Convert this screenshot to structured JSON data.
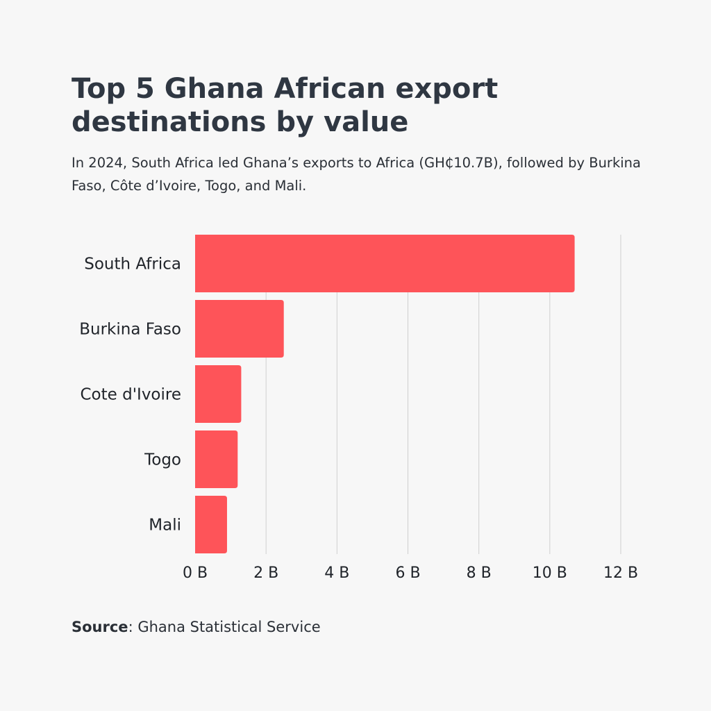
{
  "title": "Top 5 Ghana African export destinations by value",
  "subtitle": "In 2024, South Africa led Ghana’s exports to Africa (GH₵10.7B), followed by Burkina Faso, Côte d’Ivoire, Togo, and Mali.",
  "source": {
    "label": "Source",
    "text": ": Ghana Statistical Service"
  },
  "colors": {
    "bar": "#fe5459",
    "grid": "#cfcfcf",
    "background": "#f7f7f7"
  },
  "chart_data": {
    "type": "bar",
    "orientation": "horizontal",
    "categories": [
      "South Africa",
      "Burkina Faso",
      "Cote d'Ivoire",
      "Togo",
      "Mali"
    ],
    "values": [
      10.7,
      2.5,
      1.3,
      1.2,
      0.9
    ],
    "xlim": [
      0,
      12
    ],
    "xticks": [
      0,
      2,
      4,
      6,
      8,
      10,
      12
    ],
    "xtick_labels": [
      "0 B",
      "2 B",
      "4 B",
      "6 B",
      "8 B",
      "10 B",
      "12 B"
    ],
    "grid": true,
    "legend": "none"
  }
}
